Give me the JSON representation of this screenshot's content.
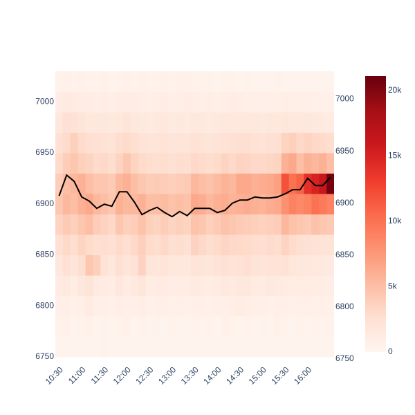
{
  "chart_data": {
    "type": "heatmap",
    "x": [
      "10:30",
      "10:40",
      "10:50",
      "11:00",
      "11:10",
      "11:20",
      "11:30",
      "11:40",
      "11:50",
      "12:00",
      "12:10",
      "12:20",
      "12:30",
      "12:40",
      "12:50",
      "13:00",
      "13:10",
      "13:20",
      "13:30",
      "13:40",
      "13:50",
      "14:00",
      "14:10",
      "14:20",
      "14:30",
      "14:40",
      "14:50",
      "15:00",
      "15:10",
      "15:20",
      "15:30",
      "15:40",
      "15:50",
      "16:00",
      "16:10",
      "16:20",
      "16:30"
    ],
    "y": [
      6760,
      6780,
      6800,
      6820,
      6840,
      6860,
      6880,
      6900,
      6920,
      6940,
      6960,
      6980,
      7000,
      7020
    ],
    "z": [
      [
        200,
        300,
        200,
        300,
        200,
        300,
        400,
        200,
        300,
        200,
        300,
        200,
        200,
        300,
        200,
        200,
        300,
        200,
        200,
        300,
        200,
        200,
        300,
        200,
        200,
        300,
        200,
        300,
        200,
        200,
        300,
        200,
        200,
        300,
        200,
        200,
        300
      ],
      [
        400,
        500,
        300,
        400,
        500,
        300,
        400,
        300,
        400,
        500,
        300,
        400,
        300,
        400,
        300,
        400,
        300,
        300,
        400,
        300,
        400,
        300,
        500,
        400,
        300,
        400,
        300,
        400,
        300,
        500,
        400,
        300,
        400,
        300,
        400,
        300,
        400
      ],
      [
        700,
        900,
        600,
        800,
        1200,
        700,
        800,
        600,
        900,
        700,
        800,
        900,
        600,
        700,
        800,
        600,
        700,
        600,
        800,
        700,
        600,
        800,
        700,
        900,
        1100,
        900,
        800,
        700,
        600,
        800,
        700,
        600,
        700,
        800,
        600,
        700,
        600
      ],
      [
        1200,
        1500,
        1100,
        1800,
        2200,
        1400,
        1300,
        1100,
        1600,
        1200,
        1500,
        1900,
        1100,
        1200,
        1300,
        1000,
        1100,
        1000,
        1400,
        1200,
        1100,
        1300,
        1500,
        1400,
        1600,
        1700,
        1300,
        1200,
        1500,
        1400,
        1300,
        1100,
        1200,
        1300,
        1100,
        1000,
        900
      ],
      [
        1800,
        2500,
        2000,
        2800,
        4500,
        3800,
        2200,
        1800,
        2600,
        2000,
        2400,
        3600,
        2000,
        1900,
        2100,
        1700,
        1800,
        1600,
        2200,
        2000,
        1900,
        2200,
        2500,
        2300,
        2400,
        2600,
        2200,
        2000,
        2300,
        2200,
        2400,
        1900,
        1800,
        1700,
        1600,
        1500,
        1400
      ],
      [
        2500,
        3200,
        2800,
        3500,
        3000,
        2600,
        2800,
        2500,
        3000,
        2700,
        3200,
        3800,
        3000,
        2800,
        3200,
        2600,
        2800,
        2500,
        3600,
        3200,
        2800,
        3000,
        3400,
        3200,
        3100,
        3000,
        2800,
        2700,
        2900,
        2800,
        3500,
        3000,
        2600,
        2500,
        2400,
        2300,
        2200
      ],
      [
        3500,
        4200,
        3800,
        4500,
        5000,
        4000,
        3600,
        3200,
        4500,
        3800,
        4000,
        4800,
        3800,
        3500,
        4000,
        3500,
        3800,
        3500,
        4800,
        4500,
        3800,
        4200,
        4800,
        4500,
        4200,
        4000,
        3800,
        3600,
        3800,
        4000,
        5500,
        4800,
        4500,
        4200,
        4800,
        4500,
        4200
      ],
      [
        4500,
        5500,
        5000,
        6000,
        6500,
        5500,
        5000,
        4500,
        6000,
        5500,
        5500,
        6000,
        5000,
        5000,
        5200,
        4800,
        5000,
        4800,
        6500,
        6200,
        5500,
        6000,
        6200,
        5800,
        6000,
        6200,
        6000,
        5800,
        6200,
        6500,
        8000,
        9000,
        8500,
        9000,
        10000,
        9500,
        9000
      ],
      [
        4000,
        5000,
        5500,
        6000,
        5000,
        4500,
        4500,
        4200,
        5500,
        6000,
        5000,
        4500,
        4000,
        4200,
        4000,
        3800,
        4000,
        4200,
        5500,
        5000,
        4800,
        5200,
        5800,
        5500,
        6500,
        6500,
        6000,
        6200,
        6500,
        7000,
        12000,
        10000,
        11000,
        14000,
        15000,
        16000,
        20500
      ],
      [
        3000,
        4000,
        4500,
        3800,
        3500,
        3000,
        3200,
        2800,
        3500,
        4500,
        3500,
        3000,
        2800,
        2600,
        2800,
        2500,
        2800,
        2600,
        3200,
        3000,
        2800,
        3000,
        3500,
        3200,
        3500,
        3400,
        3200,
        3200,
        3300,
        3500,
        6000,
        6500,
        5000,
        6000,
        5500,
        6000,
        5000
      ],
      [
        2500,
        3000,
        3800,
        3000,
        2600,
        2500,
        2400,
        2200,
        2800,
        3000,
        2600,
        2200,
        2000,
        2100,
        2200,
        2000,
        2100,
        2000,
        2400,
        2200,
        2000,
        2200,
        2400,
        2500,
        2600,
        2600,
        2400,
        2300,
        2500,
        2600,
        3500,
        3800,
        3200,
        3500,
        3200,
        3000,
        2800
      ],
      [
        1800,
        2500,
        2400,
        2000,
        1800,
        1600,
        1700,
        1500,
        1800,
        2000,
        1800,
        1500,
        1400,
        1500,
        1600,
        1400,
        1500,
        1400,
        1600,
        1500,
        1400,
        1500,
        1600,
        1700,
        1800,
        1700,
        1600,
        1500,
        1600,
        1700,
        1900,
        1800,
        1700,
        1600,
        1500,
        1400,
        1300
      ],
      [
        1000,
        1400,
        1200,
        1100,
        1000,
        900,
        1000,
        800,
        1000,
        1100,
        1000,
        900,
        800,
        900,
        1000,
        800,
        900,
        1000,
        900,
        800,
        900,
        800,
        900,
        1000,
        900,
        800,
        700,
        800,
        700,
        800,
        900,
        800,
        700,
        800,
        700,
        600,
        600
      ],
      [
        400,
        500,
        400,
        500,
        400,
        400,
        500,
        300,
        400,
        500,
        400,
        500,
        400,
        400,
        500,
        400,
        500,
        600,
        400,
        400,
        400,
        300,
        400,
        400,
        300,
        400,
        300,
        300,
        300,
        400,
        300,
        300,
        300,
        300,
        300,
        300,
        300
      ]
    ],
    "colorscale": [
      "#fff5f0",
      "#fee0d2",
      "#fcbba1",
      "#fc9272",
      "#fb6a4a",
      "#ef3b2c",
      "#cb181d",
      "#a50f15",
      "#67000d"
    ],
    "zlim": [
      0,
      21100
    ],
    "zticks": [
      0,
      {
        "value": 5000,
        "label": "5k"
      },
      {
        "value": 10000,
        "label": "10k"
      },
      {
        "value": 15000,
        "label": "15k"
      },
      {
        "value": 20000,
        "label": "20k"
      }
    ],
    "xlim": [
      "10:25",
      "16:35"
    ],
    "xticks": [
      "10:30",
      "11:00",
      "11:30",
      "12:00",
      "12:30",
      "13:00",
      "13:30",
      "14:00",
      "14:30",
      "15:00",
      "15:30",
      "16:00"
    ],
    "ylim": [
      6748,
      7032
    ],
    "yticks": [
      6750,
      6800,
      6850,
      6900,
      6950,
      7000
    ],
    "y2lim": [
      6750,
      7029
    ],
    "y2ticks": [
      6750,
      6800,
      6850,
      6900,
      6950,
      7000
    ],
    "series": [
      {
        "type": "line",
        "axis": "y2",
        "color": "#000000",
        "values": [
          6907,
          6927,
          6921,
          6906,
          6902,
          6895,
          6899,
          6897,
          6911,
          6911,
          6901,
          6889,
          6893,
          6896,
          6891,
          6887,
          6892,
          6888,
          6895,
          6895,
          6895,
          6891,
          6893,
          6900,
          6903,
          6903,
          6906,
          6905,
          6905,
          6906,
          6909,
          6913,
          6913,
          6924,
          6917,
          6917,
          6925
        ]
      }
    ]
  }
}
